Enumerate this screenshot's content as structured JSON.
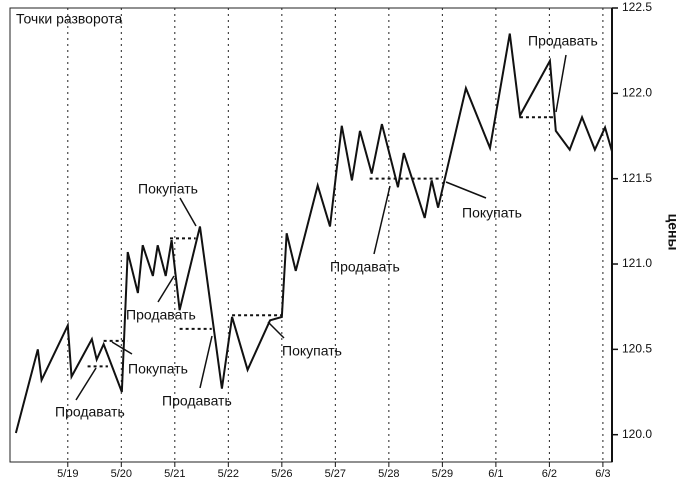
{
  "chart_data": {
    "type": "line",
    "title": "Точки разворота",
    "y_label": "цены",
    "x": [
      -0.97,
      -0.56,
      -0.49,
      0,
      0.07,
      0.45,
      0.54,
      0.67,
      1.01,
      1.12,
      1.31,
      1.4,
      1.59,
      1.68,
      1.83,
      1.94,
      2.09,
      2.47,
      2.88,
      3.07,
      3.36,
      3.78,
      4.0,
      4.09,
      4.26,
      4.67,
      4.9,
      5.12,
      5.31,
      5.46,
      5.68,
      5.87,
      6.17,
      6.28,
      6.67,
      6.8,
      6.92,
      7.44,
      7.89,
      8.26,
      8.45,
      9.01,
      9.12,
      9.38,
      9.61,
      9.85,
      10.04,
      10.17
    ],
    "series": [
      {
        "color": "#111111",
        "values": [
          120.01,
          120.5,
          120.32,
          120.64,
          120.34,
          120.56,
          120.44,
          120.53,
          120.25,
          121.07,
          120.83,
          121.11,
          120.93,
          121.11,
          120.93,
          121.14,
          120.73,
          121.22,
          120.27,
          120.69,
          120.38,
          120.67,
          120.69,
          121.18,
          120.96,
          121.46,
          121.22,
          121.81,
          121.49,
          121.78,
          121.53,
          121.82,
          121.45,
          121.65,
          121.27,
          121.49,
          121.33,
          122.03,
          121.68,
          122.35,
          121.87,
          122.19,
          121.78,
          121.67,
          121.86,
          121.67,
          121.8,
          121.66
        ]
      }
    ],
    "levels": [
      {
        "x": [
          0.37,
          0.75
        ],
        "y": 120.4
      },
      {
        "x": [
          0.67,
          1.12
        ],
        "y": 120.55
      },
      {
        "x": [
          1.91,
          2.39
        ],
        "y": 121.15
      },
      {
        "x": [
          2.09,
          2.69
        ],
        "y": 120.62
      },
      {
        "x": [
          3.07,
          4.0
        ],
        "y": 120.7
      },
      {
        "x": [
          5.64,
          6.99
        ],
        "y": 121.5
      },
      {
        "x": [
          8.45,
          9.12
        ],
        "y": 121.86
      }
    ],
    "annotations": [
      "Покупать",
      "Продавать",
      "Покупать",
      "Продавать",
      "Продавать",
      "Покупать",
      "Продавать",
      "Покупать",
      "Продавать"
    ],
    "xlim": [
      -1.08,
      10.17
    ],
    "xticks": [
      {
        "value": 0,
        "label": "5/19"
      },
      {
        "value": 1,
        "label": "5/20"
      },
      {
        "value": 2,
        "label": "5/21"
      },
      {
        "value": 3,
        "label": "5/22"
      },
      {
        "value": 4,
        "label": "5/26"
      },
      {
        "value": 5,
        "label": "5/27"
      },
      {
        "value": 6,
        "label": "5/28"
      },
      {
        "value": 7,
        "label": "5/29"
      },
      {
        "value": 8,
        "label": "6/1"
      },
      {
        "value": 9,
        "label": "6/2"
      },
      {
        "value": 10,
        "label": "6/3"
      }
    ],
    "ylim": [
      119.84,
      122.5
    ],
    "yticks": [
      122.5,
      {
        "value": 122.0,
        "label": "122.0"
      },
      121.5,
      {
        "value": 121.0,
        "label": "121.0"
      },
      120.5,
      {
        "value": 120.0,
        "label": "120.0"
      }
    ],
    "grid": true
  }
}
